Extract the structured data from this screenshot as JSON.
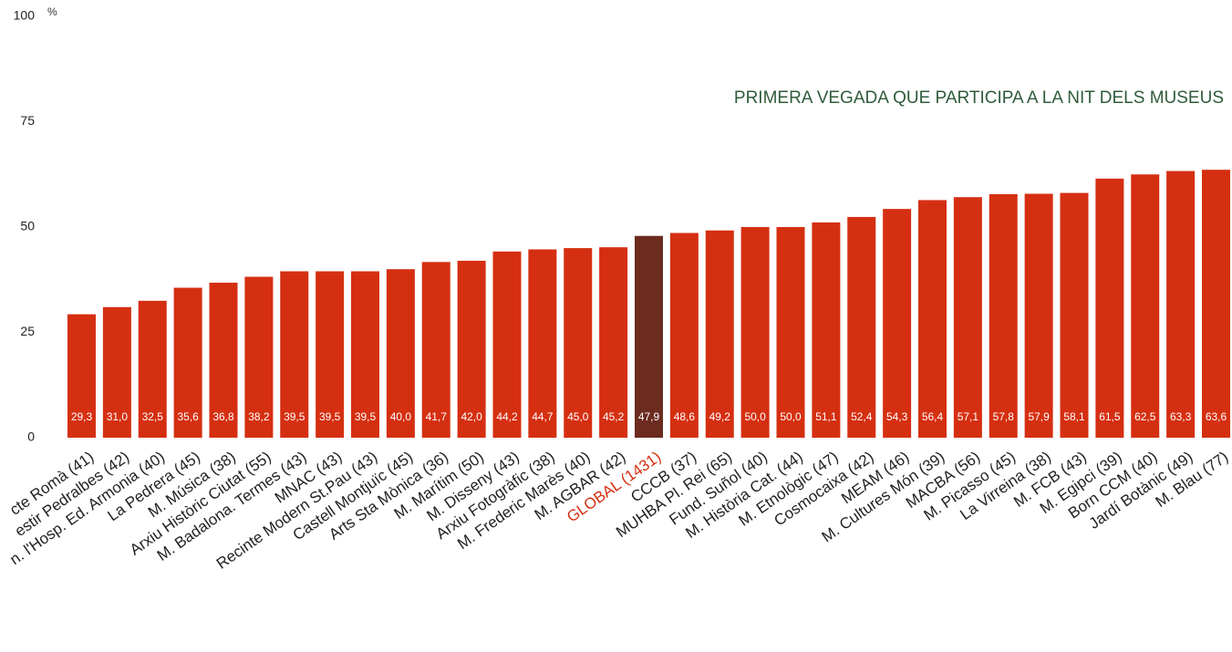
{
  "chart_data": {
    "type": "bar",
    "title": "PRIMERA VEGADA QUE PARTICIPA A LA NIT DELS MUSEUS",
    "y_label": "%",
    "categories": [
      "cte Romà (41)",
      "estir Pedralbes (42)",
      "n. l'Hosp. Ed. Armonia (40)",
      "La Pedrera (45)",
      "M. Música (38)",
      "Arxiu Històric Ciutat (55)",
      "M. Badalona. Termes (43)",
      "MNAC (43)",
      "Recinte Modern St.Pau (43)",
      "Castell Montjuïc (45)",
      "Arts Sta Mònica (36)",
      "M. Marítim (50)",
      "M. Disseny (43)",
      "Arxiu Fotogràfic (38)",
      "M. Frederic Marès (40)",
      "M. AGBAR (42)",
      "GLOBAL (1431)",
      "CCCB (37)",
      "MUHBA Pl. Rei (65)",
      "Fund. Suñol (40)",
      "M. Història Cat. (44)",
      "M. Etnològic (47)",
      "Cosmocaixa (42)",
      "MEAM (46)",
      "M. Cultures Món (39)",
      "MACBA (56)",
      "M. Picasso (45)",
      "La Virreina (38)",
      "M. FCB (43)",
      "M. Egipci (39)",
      "Born CCM (40)",
      "Jardí Botànic (49)",
      "M. Blau (77)"
    ],
    "values": [
      29.3,
      31.0,
      32.5,
      35.6,
      36.8,
      38.2,
      39.5,
      39.5,
      39.5,
      40.0,
      41.7,
      42.0,
      44.2,
      44.7,
      45.0,
      45.2,
      47.9,
      48.6,
      49.2,
      50.0,
      50.0,
      51.1,
      52.4,
      54.3,
      56.4,
      57.1,
      57.8,
      57.9,
      58.1,
      61.5,
      62.5,
      63.3,
      63.6
    ],
    "value_labels": [
      "29,3",
      "31,0",
      "32,5",
      "35,6",
      "36,8",
      "38,2",
      "39,5",
      "39,5",
      "39,5",
      "40,0",
      "41,7",
      "42,0",
      "44,2",
      "44,7",
      "45,0",
      "45,2",
      "47,9",
      "48,6",
      "49,2",
      "50,0",
      "50,0",
      "51,1",
      "52,4",
      "54,3",
      "56,4",
      "57,1",
      "57,8",
      "57,9",
      "58,1",
      "61,5",
      "62,5",
      "63,3",
      "63,6"
    ],
    "colors": [
      "#d52f11",
      "#d52f11",
      "#d52f11",
      "#d52f11",
      "#d52f11",
      "#d52f11",
      "#d52f11",
      "#d52f11",
      "#d52f11",
      "#d52f11",
      "#d52f11",
      "#d52f11",
      "#d52f11",
      "#d52f11",
      "#d52f11",
      "#d52f11",
      "#6b2b1f",
      "#d52f11",
      "#d52f11",
      "#d52f11",
      "#d52f11",
      "#d52f11",
      "#d52f11",
      "#d52f11",
      "#d52f11",
      "#d52f11",
      "#d52f11",
      "#d52f11",
      "#d52f11",
      "#d52f11",
      "#d52f11",
      "#d52f11",
      "#d52f11"
    ],
    "label_colors": [
      "#222222",
      "#222222",
      "#222222",
      "#222222",
      "#222222",
      "#222222",
      "#222222",
      "#222222",
      "#222222",
      "#222222",
      "#222222",
      "#222222",
      "#222222",
      "#222222",
      "#222222",
      "#222222",
      "#d52f11",
      "#222222",
      "#222222",
      "#222222",
      "#222222",
      "#222222",
      "#222222",
      "#222222",
      "#222222",
      "#222222",
      "#222222",
      "#222222",
      "#222222",
      "#222222",
      "#222222",
      "#222222",
      "#222222"
    ],
    "title_color": "#2f5b3a",
    "ylim": [
      0,
      100
    ],
    "yticks": [
      0,
      25,
      50,
      75,
      100
    ],
    "grid": false
  }
}
